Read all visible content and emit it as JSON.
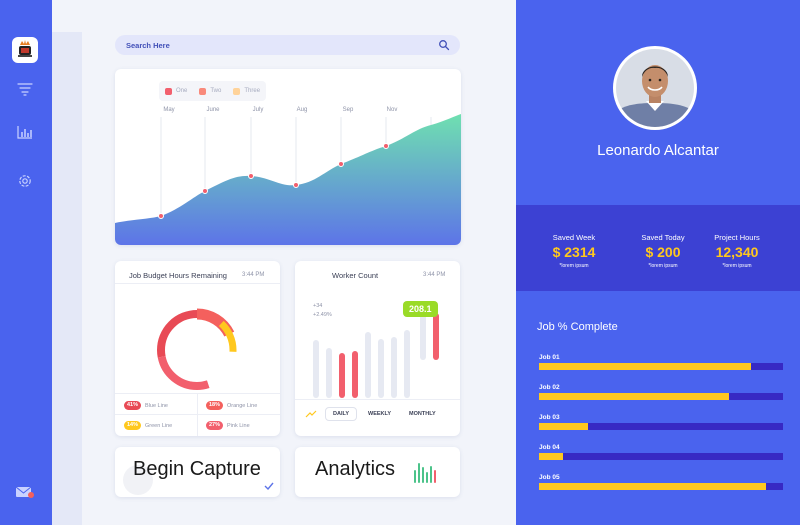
{
  "search": {
    "placeholder": "Search Here"
  },
  "area_chart": {
    "legend": [
      {
        "label": "One",
        "color": "#f25f6d"
      },
      {
        "label": "Two",
        "color": "#f98a7b"
      },
      {
        "label": "Three",
        "color": "#ffd39a"
      }
    ],
    "months": [
      "May",
      "June",
      "July",
      "Aug",
      "Sep",
      "Nov"
    ]
  },
  "budget": {
    "title": "Job Budget Hours Remaining",
    "time": "3:44 PM",
    "legend": [
      {
        "pct": "41%",
        "label": "Blue Line",
        "color": "#e84a55"
      },
      {
        "pct": "18%",
        "label": "Orange Line",
        "color": "#f4605d"
      },
      {
        "pct": "14%",
        "label": "Green Line",
        "color": "#ffc81e"
      },
      {
        "pct": "27%",
        "label": "Pink Line",
        "color": "#f25f6d"
      }
    ]
  },
  "worker": {
    "title": "Worker Count",
    "time": "3:44 PM",
    "stat1": "+34",
    "stat2": "+2.49%",
    "badge": "208.1",
    "tabs": [
      "DAILY",
      "WEEKLY",
      "MONTHLY"
    ]
  },
  "capture": {
    "label": "Begin Capture"
  },
  "analytics": {
    "label": "Analytics"
  },
  "profile": {
    "name": "Leonardo Alcantar",
    "stats": [
      {
        "label": "Saved Week",
        "value": "$ 2314",
        "sub": "*lorem ipsum"
      },
      {
        "label": "Saved Today",
        "value": "$ 200",
        "sub": "*lorem ipsum"
      },
      {
        "label": "Project Hours",
        "value": "12,340",
        "sub": "*lorem ipsum"
      }
    ]
  },
  "jobs": {
    "title": "Job % Complete",
    "items": [
      {
        "label": "Job 01",
        "progress": 0.87
      },
      {
        "label": "Job 02",
        "progress": 0.78
      },
      {
        "label": "Job 03",
        "progress": 0.2
      },
      {
        "label": "Job 04",
        "progress": 0.1
      },
      {
        "label": "Job 05",
        "progress": 0.93
      }
    ]
  },
  "colors": {
    "accent": "#4a63ee",
    "dark_band": "#3c41d3",
    "gold": "#ffc81e",
    "bar_track": "#3729c4"
  },
  "icons": {
    "logo": "coffee-logo-icon",
    "nav": [
      "filter-icon",
      "bar-chart-icon",
      "settings-icon"
    ],
    "mail": "mail-icon",
    "search": "search-icon"
  }
}
